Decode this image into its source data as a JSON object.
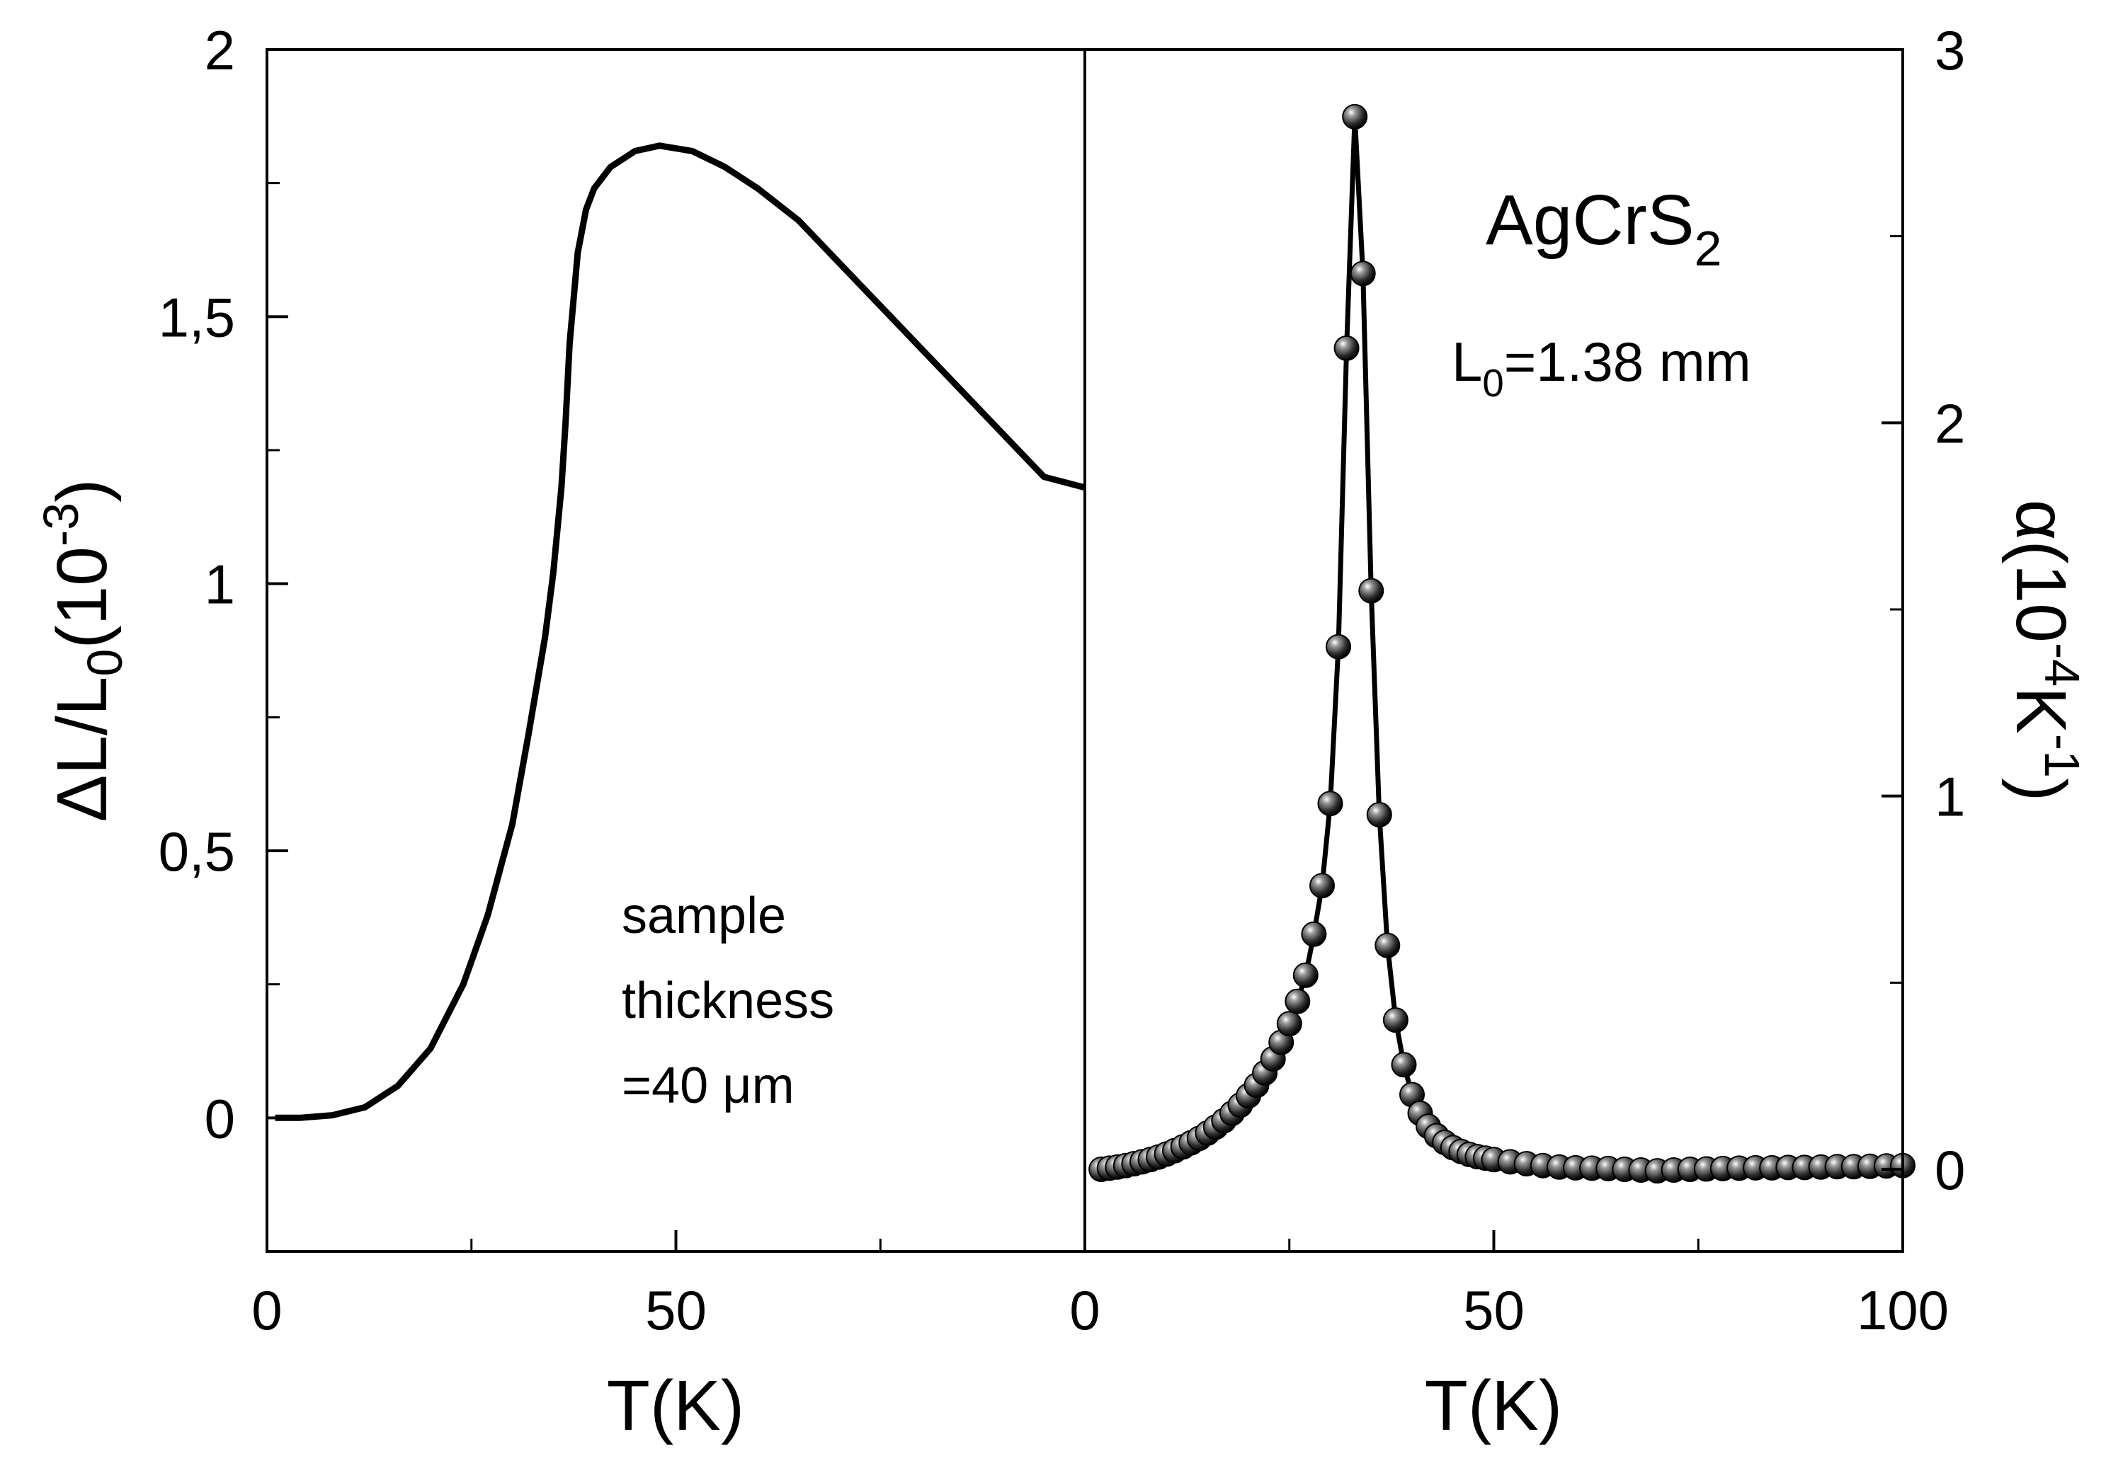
{
  "chart_data": [
    {
      "type": "line",
      "name": "thermal-expansion",
      "xlabel": "T(K)",
      "ylabel": {
        "main": "ΔL/L",
        "sub": "0",
        "unit_open": "(10",
        "exp": "-3",
        "unit_close": ")"
      },
      "xlim": [
        0,
        100
      ],
      "ylim": [
        -0.25,
        2
      ],
      "xticks": [
        0,
        50
      ],
      "xtick_labels": [
        "0",
        "50"
      ],
      "yticks": [
        0,
        0.5,
        1,
        1.5,
        2
      ],
      "ytick_labels": [
        "0",
        "0,5",
        "1",
        "1,5",
        "2"
      ],
      "annotation": [
        "sample",
        "thickness",
        "=40 μm"
      ],
      "series": [
        {
          "name": "ΔL/L0",
          "x": [
            1,
            4,
            8,
            12,
            16,
            20,
            24,
            27,
            30,
            32,
            34,
            35,
            36,
            36.5,
            37,
            38,
            39,
            40,
            42,
            45,
            48,
            52,
            56,
            60,
            65,
            70,
            75,
            80,
            85,
            90,
            95,
            100
          ],
          "y": [
            0,
            0,
            0.005,
            0.02,
            0.06,
            0.13,
            0.25,
            0.38,
            0.55,
            0.72,
            0.9,
            1.02,
            1.18,
            1.3,
            1.45,
            1.62,
            1.7,
            1.74,
            1.78,
            1.81,
            1.82,
            1.81,
            1.78,
            1.74,
            1.68,
            1.6,
            1.52,
            1.44,
            1.36,
            1.28,
            1.2,
            1.18
          ]
        }
      ]
    },
    {
      "type": "line",
      "name": "expansion-coefficient",
      "xlabel": "T(K)",
      "ylabel": {
        "main": "α(10",
        "exp": "-4",
        "unit_mid": "K",
        "exp2": "-1",
        "unit_close": ")"
      },
      "xlim": [
        0,
        100
      ],
      "ylim": [
        -0.22,
        3
      ],
      "xticks": [
        0,
        50,
        100
      ],
      "xtick_labels": [
        "0",
        "50",
        "100"
      ],
      "yticks": [
        0,
        1,
        2,
        3
      ],
      "ytick_labels": [
        "0",
        "1",
        "2",
        "3"
      ],
      "annotation_title": {
        "main": "AgCrS",
        "sub": "2"
      },
      "annotation_length": {
        "main": "L",
        "sub": "0",
        "rest": "=1.38 mm"
      },
      "series": [
        {
          "name": "α",
          "marker": "sphere",
          "x": [
            2,
            3,
            4,
            5,
            6,
            7,
            8,
            9,
            10,
            11,
            12,
            13,
            14,
            15,
            16,
            17,
            18,
            19,
            20,
            21,
            22,
            23,
            24,
            25,
            26,
            27,
            28,
            29,
            30,
            31,
            32,
            33,
            34,
            35,
            36,
            37,
            38,
            39,
            40,
            41,
            42,
            43,
            44,
            45,
            46,
            47,
            48,
            49,
            50,
            52,
            54,
            56,
            58,
            60,
            62,
            64,
            66,
            68,
            70,
            72,
            74,
            76,
            78,
            80,
            82,
            84,
            86,
            88,
            90,
            92,
            94,
            96,
            98,
            100
          ],
          "y": [
            0.0,
            0.003,
            0.006,
            0.01,
            0.015,
            0.02,
            0.026,
            0.033,
            0.041,
            0.05,
            0.06,
            0.071,
            0.083,
            0.097,
            0.113,
            0.13,
            0.15,
            0.172,
            0.197,
            0.225,
            0.258,
            0.296,
            0.34,
            0.39,
            0.45,
            0.52,
            0.63,
            0.76,
            0.98,
            1.4,
            2.2,
            2.82,
            2.4,
            1.55,
            0.95,
            0.6,
            0.4,
            0.28,
            0.2,
            0.15,
            0.115,
            0.09,
            0.072,
            0.058,
            0.048,
            0.04,
            0.034,
            0.03,
            0.026,
            0.02,
            0.015,
            0.01,
            0.006,
            0.004,
            0.003,
            0.002,
            0.0,
            -0.002,
            -0.004,
            -0.002,
            0.0,
            0.001,
            0.002,
            0.003,
            0.004,
            0.004,
            0.005,
            0.005,
            0.006,
            0.007,
            0.007,
            0.008,
            0.009,
            0.01
          ]
        }
      ]
    }
  ]
}
